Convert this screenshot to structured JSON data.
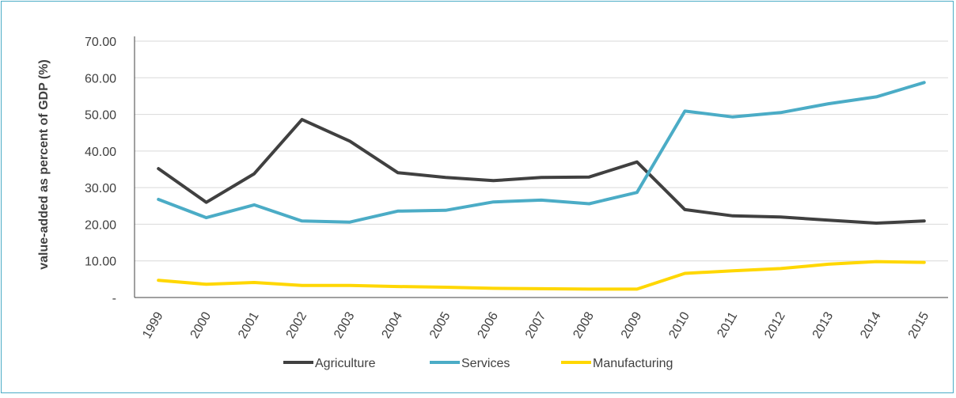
{
  "chart_data": {
    "type": "line",
    "title": "",
    "xlabel": "",
    "ylabel": "value-added as percent of GDP (%)",
    "ylim": [
      0,
      70
    ],
    "y_ticks": [
      {
        "value": 0,
        "label": "-"
      },
      {
        "value": 10,
        "label": "10.00"
      },
      {
        "value": 20,
        "label": "20.00"
      },
      {
        "value": 30,
        "label": "30.00"
      },
      {
        "value": 40,
        "label": "40.00"
      },
      {
        "value": 50,
        "label": "50.00"
      },
      {
        "value": 60,
        "label": "60.00"
      },
      {
        "value": 70,
        "label": "70.00"
      }
    ],
    "grid": "horizontal",
    "legend_position": "bottom",
    "x": [
      "1999",
      "2000",
      "2001",
      "2002",
      "2003",
      "2004",
      "2005",
      "2006",
      "2007",
      "2008",
      "2009",
      "2010",
      "2011",
      "2012",
      "2013",
      "2014",
      "2015"
    ],
    "series": [
      {
        "name": "Agriculture",
        "color": "#404040",
        "values": [
          35.2,
          26.0,
          33.8,
          48.6,
          42.7,
          34.1,
          32.8,
          31.9,
          32.8,
          32.9,
          37.0,
          24.0,
          22.3,
          22.0,
          21.1,
          20.3,
          20.9
        ]
      },
      {
        "name": "Services",
        "color": "#4bacc6",
        "values": [
          26.8,
          21.8,
          25.3,
          20.9,
          20.6,
          23.6,
          23.8,
          26.1,
          26.6,
          25.6,
          28.7,
          50.9,
          49.3,
          50.5,
          52.9,
          54.8,
          58.7
        ]
      },
      {
        "name": "Manufacturing",
        "color": "#ffd700",
        "values": [
          4.7,
          3.6,
          4.1,
          3.3,
          3.3,
          3.0,
          2.8,
          2.5,
          2.4,
          2.3,
          2.3,
          6.6,
          7.3,
          7.9,
          9.1,
          9.8,
          9.6
        ]
      }
    ]
  }
}
